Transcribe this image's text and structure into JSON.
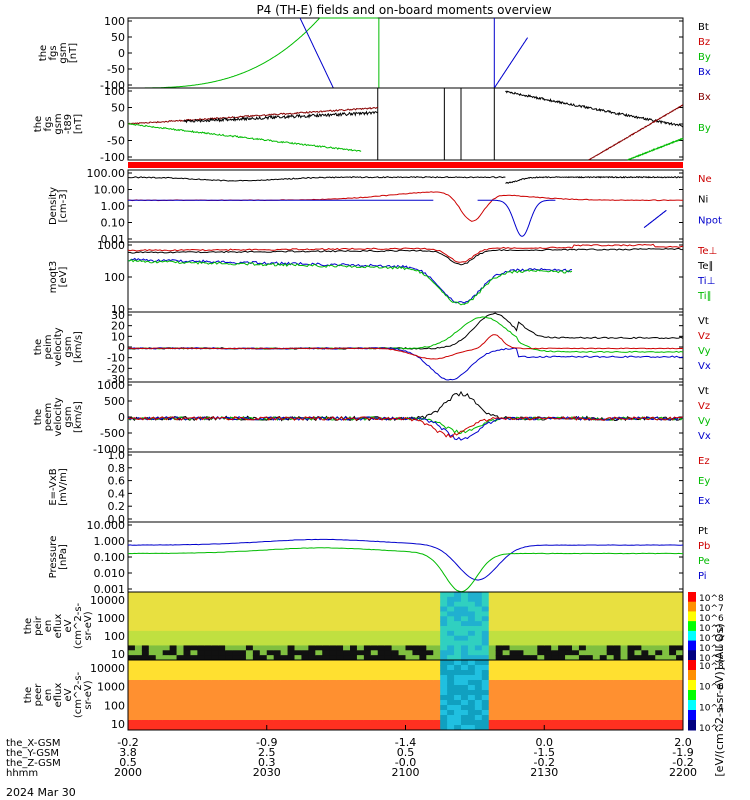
{
  "title": "P4 (TH-E) fields and on-board moments overview",
  "date_label": "2024 Mar 30",
  "colorbar_label": "[eV/(cm^2-s-sr-eV)] (All Qs)",
  "chart_data": [
    {
      "id": "fgs",
      "type": "line",
      "ylabel": [
        "the",
        "fgs",
        "gsm",
        "[nT]"
      ],
      "yticks": [
        "100",
        "50",
        "0",
        "-50",
        "-100"
      ],
      "ylim": [
        -100,
        100
      ],
      "legend": [
        {
          "name": "Bt",
          "color": "#000000"
        },
        {
          "name": "Bz",
          "color": "#cc0000"
        },
        {
          "name": "By",
          "color": "#00bb00"
        },
        {
          "name": "Bx",
          "color": "#0000cc"
        }
      ]
    },
    {
      "id": "fgs_btrace",
      "type": "line",
      "ylabel": [
        "the",
        "fgs",
        "gsm",
        "-t89",
        "[nT]"
      ],
      "yticks": [
        "100",
        "50",
        "0",
        "-50",
        "-100"
      ],
      "ylim": [
        -120,
        120
      ],
      "legend": [
        {
          "name": "Bx",
          "color": "#880000"
        },
        {
          "name": "By",
          "color": "#00bb00"
        }
      ]
    },
    {
      "id": "density",
      "type": "line",
      "ylabel": [
        "Density",
        "[cm-3]"
      ],
      "yticks": [
        "100.00",
        "10.00",
        "1.00",
        "0.10",
        "0.01"
      ],
      "yscale": "log",
      "legend": [
        {
          "name": "Ne",
          "color": "#cc0000"
        },
        {
          "name": "Ni",
          "color": "#000000"
        },
        {
          "name": "Npot",
          "color": "#0000cc"
        }
      ]
    },
    {
      "id": "temperature",
      "type": "line",
      "ylabel": [
        "moqt3",
        "[eV]"
      ],
      "yticks": [
        "1000",
        "100",
        "10"
      ],
      "yscale": "log",
      "legend": [
        {
          "name": "Te⊥",
          "color": "#cc0000"
        },
        {
          "name": "Te∥",
          "color": "#000000"
        },
        {
          "name": "Ti⊥",
          "color": "#0000cc"
        },
        {
          "name": "Ti∥",
          "color": "#00bb00"
        }
      ]
    },
    {
      "id": "peim_velocity",
      "type": "line",
      "ylabel": [
        "the",
        "peim",
        "velocity",
        "gsm",
        "[km/s]"
      ],
      "yticks": [
        "30",
        "20",
        "10",
        "0",
        "-10",
        "-20",
        "-30"
      ],
      "ylim": [
        -30,
        35
      ],
      "legend": [
        {
          "name": "Vt",
          "color": "#000000"
        },
        {
          "name": "Vz",
          "color": "#cc0000"
        },
        {
          "name": "Vy",
          "color": "#00bb00"
        },
        {
          "name": "Vx",
          "color": "#0000cc"
        }
      ]
    },
    {
      "id": "peem_velocity",
      "type": "line",
      "ylabel": [
        "the",
        "peem",
        "velocity",
        "gsm",
        "[km/s]"
      ],
      "yticks": [
        "1000",
        "500",
        "0",
        "-500",
        "-1000"
      ],
      "ylim": [
        -1000,
        1000
      ],
      "legend": [
        {
          "name": "Vt",
          "color": "#000000"
        },
        {
          "name": "Vz",
          "color": "#cc0000"
        },
        {
          "name": "Vy",
          "color": "#00bb00"
        },
        {
          "name": "Vx",
          "color": "#0000cc"
        }
      ]
    },
    {
      "id": "efield",
      "type": "line",
      "ylabel": [
        "E=-VxB",
        "[mV/m]"
      ],
      "yticks": [
        "1.0",
        "0.8",
        "0.6",
        "0.4",
        "0.2",
        "0.0"
      ],
      "ylim": [
        0,
        1
      ],
      "legend": [
        {
          "name": "Ez",
          "color": "#cc0000"
        },
        {
          "name": "Ey",
          "color": "#00bb00"
        },
        {
          "name": "Ex",
          "color": "#0000cc"
        }
      ]
    },
    {
      "id": "pressure",
      "type": "line",
      "ylabel": [
        "Pressure",
        "[nPa]"
      ],
      "yticks": [
        "10.000",
        "1.000",
        "0.100",
        "0.010",
        "0.001"
      ],
      "yscale": "log",
      "legend": [
        {
          "name": "Pt",
          "color": "#000000"
        },
        {
          "name": "Pb",
          "color": "#cc0000"
        },
        {
          "name": "Pe",
          "color": "#00bb00"
        },
        {
          "name": "Pi",
          "color": "#0000cc"
        }
      ]
    },
    {
      "id": "peir_spec",
      "type": "heatmap",
      "ylabel": [
        "the",
        "peir",
        "en",
        "eflux",
        "eV",
        "(cm^2-s-",
        "sr-eV)"
      ],
      "yticks": [
        "10000",
        "1000",
        "100",
        "10"
      ],
      "colorbar_ticks": [
        "10^8",
        "10^7",
        "10^6",
        "10^5",
        "10^4",
        "10^3",
        "10^2"
      ]
    },
    {
      "id": "peer_spec",
      "type": "heatmap",
      "ylabel": [
        "the",
        "peer",
        "en",
        "eflux",
        "eV",
        "(cm^2-s-",
        "sr-eV)"
      ],
      "yticks": [
        "10000",
        "1000",
        "100",
        "10"
      ],
      "colorbar_ticks": [
        "10^8",
        "10^6",
        "10^4",
        "10^2"
      ]
    }
  ],
  "x_axis": {
    "row_labels": [
      "the_X-GSM",
      "the_Y-GSM",
      "the_Z-GSM",
      "hhmm"
    ],
    "columns": [
      {
        "x": [
          "-0.2",
          "3.8",
          "0.5",
          "2000"
        ]
      },
      {
        "x": [
          "-0.9",
          "2.5",
          "0.3",
          "2030"
        ]
      },
      {
        "x": [
          "-1.4",
          "0.5",
          "-0.0",
          "2100"
        ]
      },
      {
        "x": [
          "0.0",
          "-1.5",
          "-0.2",
          "2130"
        ]
      },
      {
        "x": [
          "2.0",
          "-1.9",
          "-0.2",
          "2200"
        ]
      }
    ]
  }
}
